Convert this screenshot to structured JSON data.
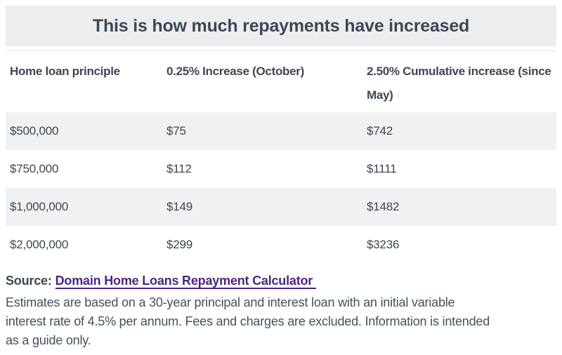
{
  "chart_data": {
    "type": "table",
    "title": "This is how much repayments have increased",
    "columns": [
      "Home loan principle",
      "0.25% Increase (October)",
      "2.50% Cumulative increase (since May)"
    ],
    "rows": [
      [
        "$500,000",
        "$75",
        "$742"
      ],
      [
        "$750,000",
        "$112",
        "$1111"
      ],
      [
        "$1,000,000",
        "$149",
        "$1482"
      ],
      [
        "$2,000,000",
        "$299",
        "$3236"
      ]
    ],
    "layout_hints": "striped rows (1st and 3rd data rows shaded), no vertical gridlines, single top border under title"
  },
  "header_display": {
    "col3_line1": "2.50% Cumulative increase (since",
    "col3_line2": "May)"
  },
  "source": {
    "label": "Source:",
    "link_label": "Domain Home Loans Repayment Calculator"
  },
  "footnote": {
    "lines": [
      "Estimates are based on a 30-year principal and interest loan with an initial variable",
      "interest rate of 4.5% per annum. Fees and charges are excluded. Information is intended",
      "as a guide only."
    ]
  },
  "colors": {
    "title_bar_bg": "#ededef",
    "row_stripe_bg": "#f0f1f3",
    "text": "#3d4653",
    "link_purple": "#4d2580"
  }
}
